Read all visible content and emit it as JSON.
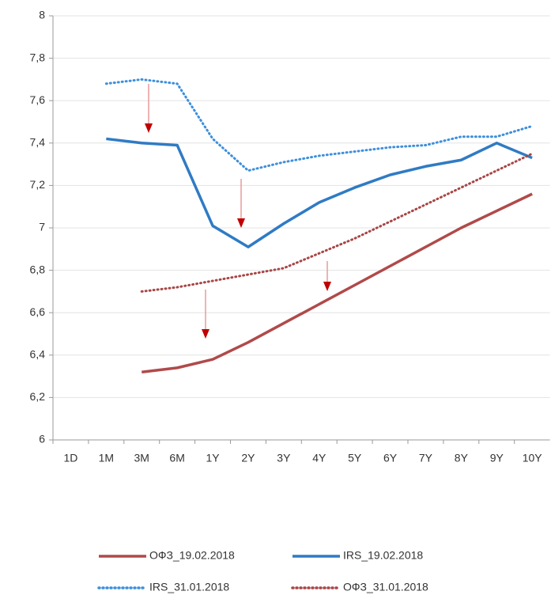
{
  "chart_data": {
    "type": "line",
    "categories": [
      "1D",
      "1M",
      "3M",
      "6M",
      "1Y",
      "2Y",
      "3Y",
      "4Y",
      "5Y",
      "6Y",
      "7Y",
      "8Y",
      "9Y",
      "10Y"
    ],
    "series": [
      {
        "name": "ОФЗ_19.02.2018",
        "color": "#b04a4a",
        "style": "solid",
        "values": [
          null,
          null,
          6.32,
          6.34,
          6.38,
          6.46,
          6.55,
          6.64,
          6.73,
          6.82,
          6.91,
          7.0,
          7.08,
          7.16
        ]
      },
      {
        "name": "IRS_19.02.2018",
        "color": "#2f7bc4",
        "style": "solid",
        "values": [
          null,
          7.42,
          7.4,
          7.39,
          7.01,
          6.91,
          7.02,
          7.12,
          7.19,
          7.25,
          7.29,
          7.32,
          7.4,
          7.33
        ]
      },
      {
        "name": "IRS_31.01.2018",
        "color": "#3d8fdc",
        "style": "dotted",
        "values": [
          null,
          7.68,
          7.7,
          7.68,
          7.42,
          7.27,
          7.31,
          7.34,
          7.36,
          7.38,
          7.39,
          7.43,
          7.43,
          7.48
        ]
      },
      {
        "name": "ОФЗ_31.01.2018",
        "color": "#a84545",
        "style": "dotted",
        "values": [
          null,
          null,
          6.7,
          6.72,
          6.75,
          6.78,
          6.81,
          6.88,
          6.95,
          7.03,
          7.11,
          7.19,
          7.27,
          7.35
        ]
      }
    ],
    "ylim": [
      6,
      8
    ],
    "yticks": [
      6,
      {
        "value": 6.2,
        "label": "6,2"
      },
      {
        "value": 6.4,
        "label": "6,4"
      },
      {
        "value": 6.6,
        "label": "6,6"
      },
      {
        "value": 6.8,
        "label": "6,8"
      },
      7,
      {
        "value": 7.2,
        "label": "7,2"
      },
      {
        "value": 7.4,
        "label": "7,4"
      },
      {
        "value": 7.6,
        "label": "7,6"
      },
      {
        "value": 7.8,
        "label": "7,8"
      },
      8
    ],
    "grid": true
  }
}
